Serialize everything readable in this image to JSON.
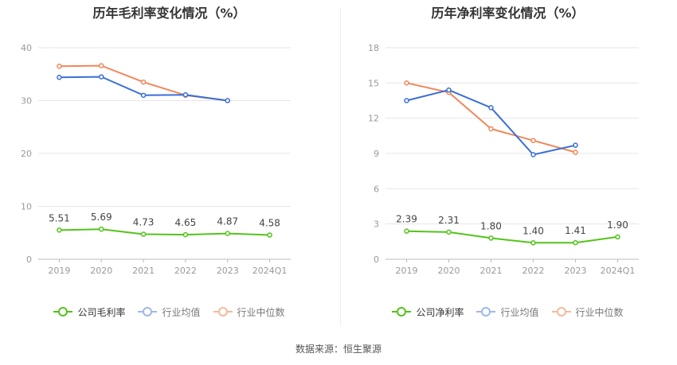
{
  "colors": {
    "company": "#52c41a",
    "average": "#3a6fd8",
    "median": "#f0875a",
    "average_legend": "#9db8ec",
    "median_legend": "#f5b99c",
    "grid": "#e6e6e6",
    "axis": "#bbbbbb"
  },
  "source": "数据来源：恒生聚源",
  "chart_data": [
    {
      "type": "line",
      "title": "历年毛利率变化情况（%）",
      "categories": [
        "2019",
        "2020",
        "2021",
        "2022",
        "2023",
        "2024Q1"
      ],
      "ylim": [
        0,
        40
      ],
      "yticks": [
        0,
        10,
        20,
        30,
        40
      ],
      "grid": true,
      "legend_position": "bottom",
      "series": [
        {
          "key": "company",
          "name": "公司毛利率",
          "values": [
            5.51,
            5.69,
            4.73,
            4.65,
            4.87,
            4.58
          ],
          "labels": [
            "5.51",
            "5.69",
            "4.73",
            "4.65",
            "4.87",
            "4.58"
          ]
        },
        {
          "key": "average",
          "name": "行业均值",
          "values": [
            34.4,
            34.5,
            31.0,
            31.1,
            30.0,
            null
          ]
        },
        {
          "key": "median",
          "name": "行业中位数",
          "values": [
            36.5,
            36.6,
            33.5,
            31.0,
            30.0,
            null
          ]
        }
      ]
    },
    {
      "type": "line",
      "title": "历年净利率变化情况（%）",
      "categories": [
        "2019",
        "2020",
        "2021",
        "2022",
        "2023",
        "2024Q1"
      ],
      "ylim": [
        0,
        18
      ],
      "yticks": [
        0,
        3,
        6,
        9,
        12,
        15,
        18
      ],
      "grid": true,
      "legend_position": "bottom",
      "series": [
        {
          "key": "company",
          "name": "公司净利率",
          "values": [
            2.39,
            2.31,
            1.8,
            1.4,
            1.41,
            1.9
          ],
          "labels": [
            "2.39",
            "2.31",
            "1.80",
            "1.40",
            "1.41",
            "1.90"
          ]
        },
        {
          "key": "average",
          "name": "行业均值",
          "values": [
            13.5,
            14.4,
            12.9,
            8.9,
            9.7,
            null
          ]
        },
        {
          "key": "median",
          "name": "行业中位数",
          "values": [
            15.0,
            14.2,
            11.1,
            10.1,
            9.1,
            null
          ]
        }
      ]
    }
  ]
}
